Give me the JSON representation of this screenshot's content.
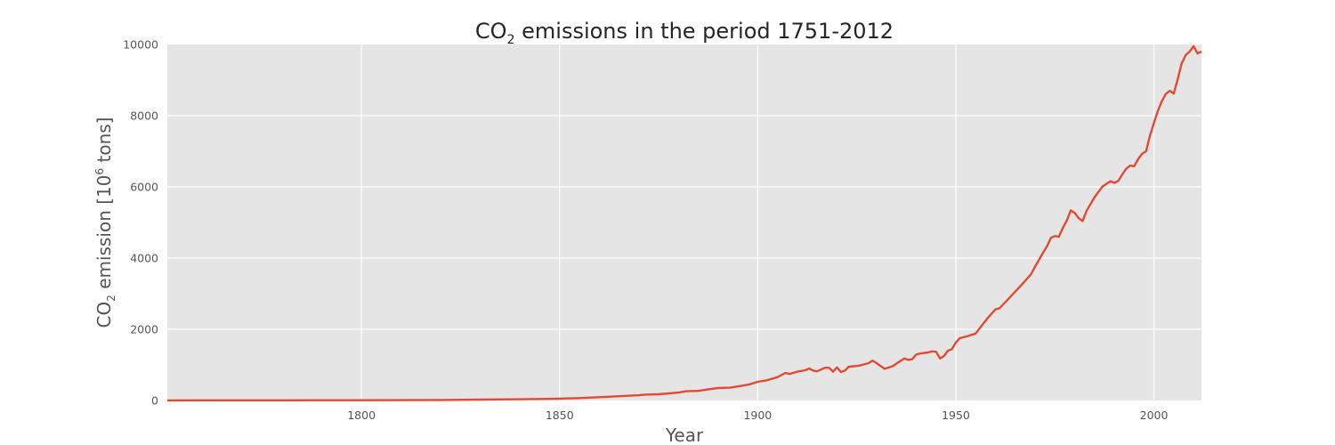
{
  "chart_data": {
    "type": "line",
    "title": "CO2 emissions in the period 1751-2012",
    "title_parts": {
      "prefix": "CO",
      "subscript": "2",
      "suffix": " emissions in the period 1751-2012"
    },
    "xlabel": "Year",
    "ylabel": "CO2 emission [10^6 tons]",
    "ylabel_parts": {
      "prefix": "CO",
      "subscript": "2",
      "middle": " emission [10",
      "superscript": "6",
      "suffix": " tons]"
    },
    "xlim": [
      1751,
      2012
    ],
    "ylim": [
      0,
      10000
    ],
    "x_ticks": [
      1800,
      1850,
      1900,
      1950,
      2000
    ],
    "y_ticks": [
      0,
      2000,
      4000,
      6000,
      8000,
      10000
    ],
    "grid": true,
    "series": [
      {
        "color": "#e24a33",
        "x": [
          1751,
          1760,
          1770,
          1780,
          1790,
          1800,
          1810,
          1820,
          1830,
          1840,
          1845,
          1850,
          1855,
          1860,
          1865,
          1870,
          1872,
          1875,
          1880,
          1882,
          1885,
          1888,
          1890,
          1893,
          1895,
          1898,
          1900,
          1902,
          1905,
          1907,
          1908,
          1910,
          1912,
          1913,
          1914,
          1915,
          1917,
          1918,
          1919,
          1920,
          1921,
          1922,
          1923,
          1925,
          1926,
          1928,
          1929,
          1930,
          1932,
          1934,
          1936,
          1937,
          1938,
          1939,
          1940,
          1941,
          1943,
          1944,
          1945,
          1946,
          1947,
          1948,
          1949,
          1950,
          1951,
          1953,
          1955,
          1957,
          1958,
          1960,
          1961,
          1963,
          1965,
          1967,
          1969,
          1970,
          1972,
          1973,
          1974,
          1975,
          1976,
          1977,
          1978,
          1979,
          1980,
          1981,
          1982,
          1983,
          1985,
          1987,
          1989,
          1990,
          1991,
          1992,
          1993,
          1994,
          1995,
          1996,
          1997,
          1998,
          1999,
          2000,
          2001,
          2002,
          2003,
          2004,
          2005,
          2006,
          2007,
          2008,
          2009,
          2010,
          2011,
          2012
        ],
        "values": [
          3,
          4,
          5,
          6,
          7,
          8,
          10,
          14,
          24,
          34,
          42,
          52,
          68,
          92,
          120,
          148,
          168,
          175,
          222,
          260,
          270,
          320,
          350,
          360,
          395,
          455,
          525,
          560,
          655,
          775,
          745,
          810,
          850,
          900,
          840,
          820,
          920,
          920,
          810,
          930,
          800,
          840,
          950,
          970,
          990,
          1050,
          1120,
          1050,
          890,
          960,
          1110,
          1180,
          1140,
          1160,
          1290,
          1320,
          1350,
          1380,
          1370,
          1180,
          1250,
          1400,
          1440,
          1630,
          1750,
          1810,
          1880,
          2170,
          2310,
          2560,
          2590,
          2820,
          3060,
          3300,
          3550,
          3760,
          4150,
          4330,
          4570,
          4620,
          4600,
          4850,
          5050,
          5340,
          5270,
          5120,
          5040,
          5330,
          5710,
          6010,
          6160,
          6110,
          6170,
          6350,
          6510,
          6600,
          6580,
          6780,
          6930,
          7000,
          7440,
          7800,
          8140,
          8410,
          8610,
          8700,
          8620,
          9030,
          9470,
          9700,
          9800,
          9950,
          9750,
          9800
        ]
      }
    ]
  }
}
